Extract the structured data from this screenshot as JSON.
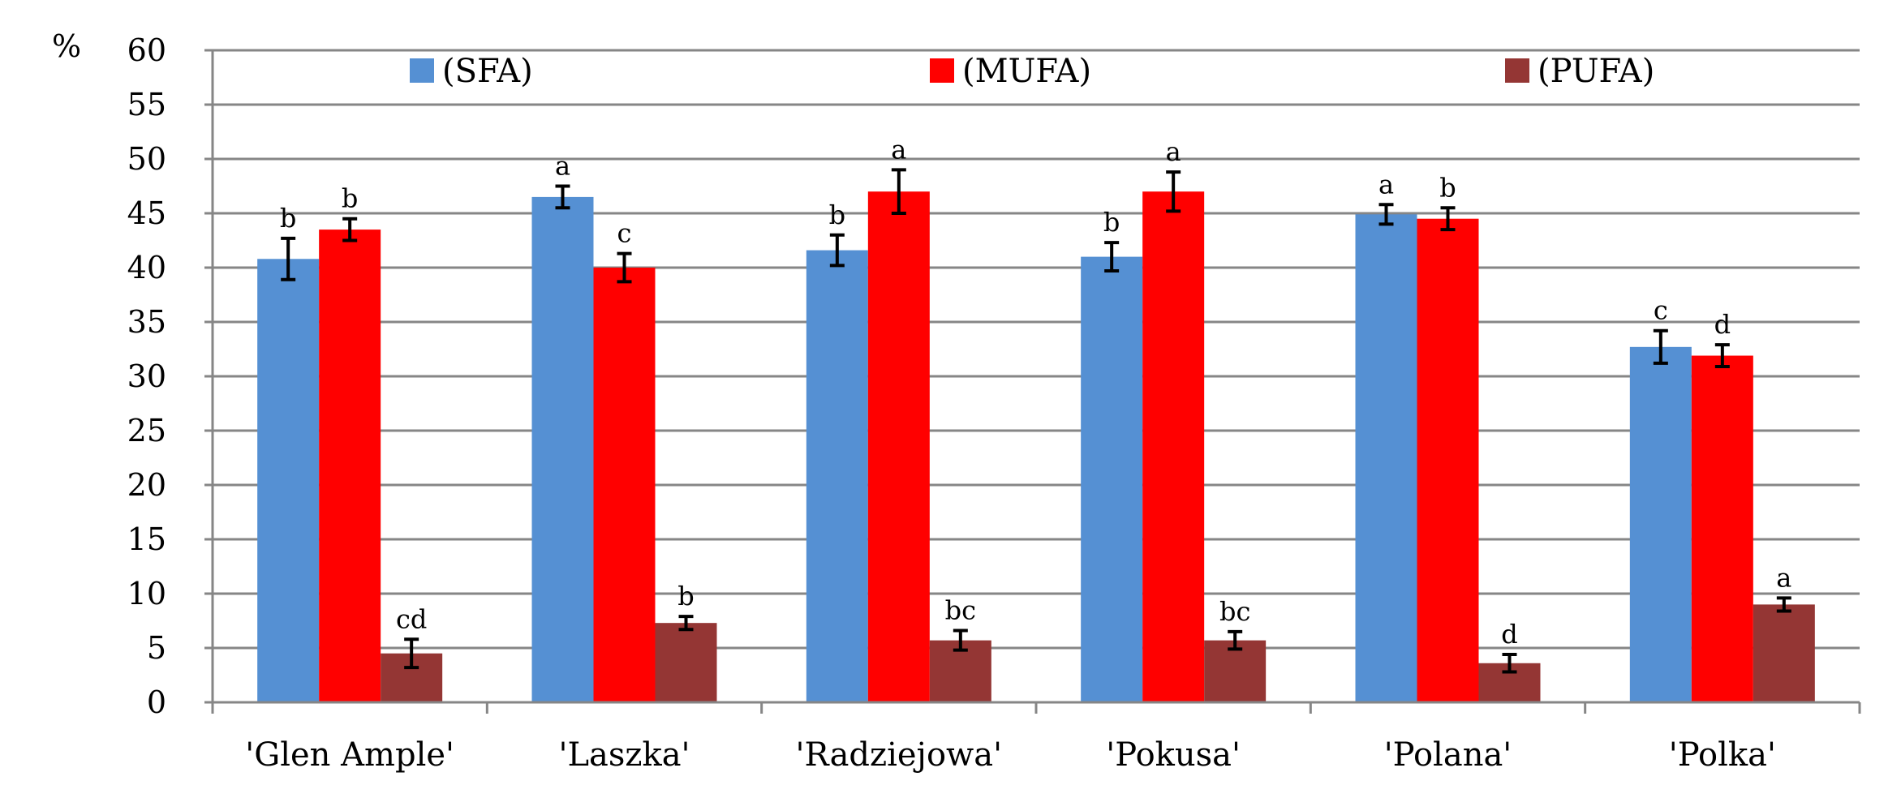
{
  "chart_data": {
    "type": "bar",
    "title": "",
    "xlabel": "",
    "ylabel": "%",
    "ylim": [
      0,
      60
    ],
    "ytick_step": 5,
    "grid": true,
    "legend_position": "top",
    "categories": [
      "'Glen Ample'",
      "'Laszka'",
      "'Radziejowa'",
      "'Pokusa'",
      "'Polana'",
      "'Polka'"
    ],
    "series": [
      {
        "name": "(SFA)",
        "color": "#5590D3",
        "values": [
          40.8,
          46.5,
          41.6,
          41.0,
          44.9,
          32.7
        ],
        "errors": [
          1.9,
          1.0,
          1.4,
          1.3,
          0.9,
          1.5
        ],
        "labels": [
          "b",
          "a",
          "b",
          "b",
          "a",
          "c"
        ]
      },
      {
        "name": "(MUFA)",
        "color": "#FF0000",
        "values": [
          43.5,
          40.0,
          47.0,
          47.0,
          44.5,
          31.9
        ],
        "errors": [
          1.0,
          1.3,
          2.0,
          1.8,
          1.0,
          1.0
        ],
        "labels": [
          "b",
          "c",
          "a",
          "a",
          "b",
          "d"
        ]
      },
      {
        "name": "(PUFA)",
        "color": "#943634",
        "values": [
          4.5,
          7.3,
          5.7,
          5.7,
          3.6,
          9.0
        ],
        "errors": [
          1.3,
          0.6,
          0.9,
          0.8,
          0.8,
          0.6
        ],
        "labels": [
          "cd",
          "b",
          "bc",
          "bc",
          "d",
          "a"
        ]
      }
    ]
  }
}
